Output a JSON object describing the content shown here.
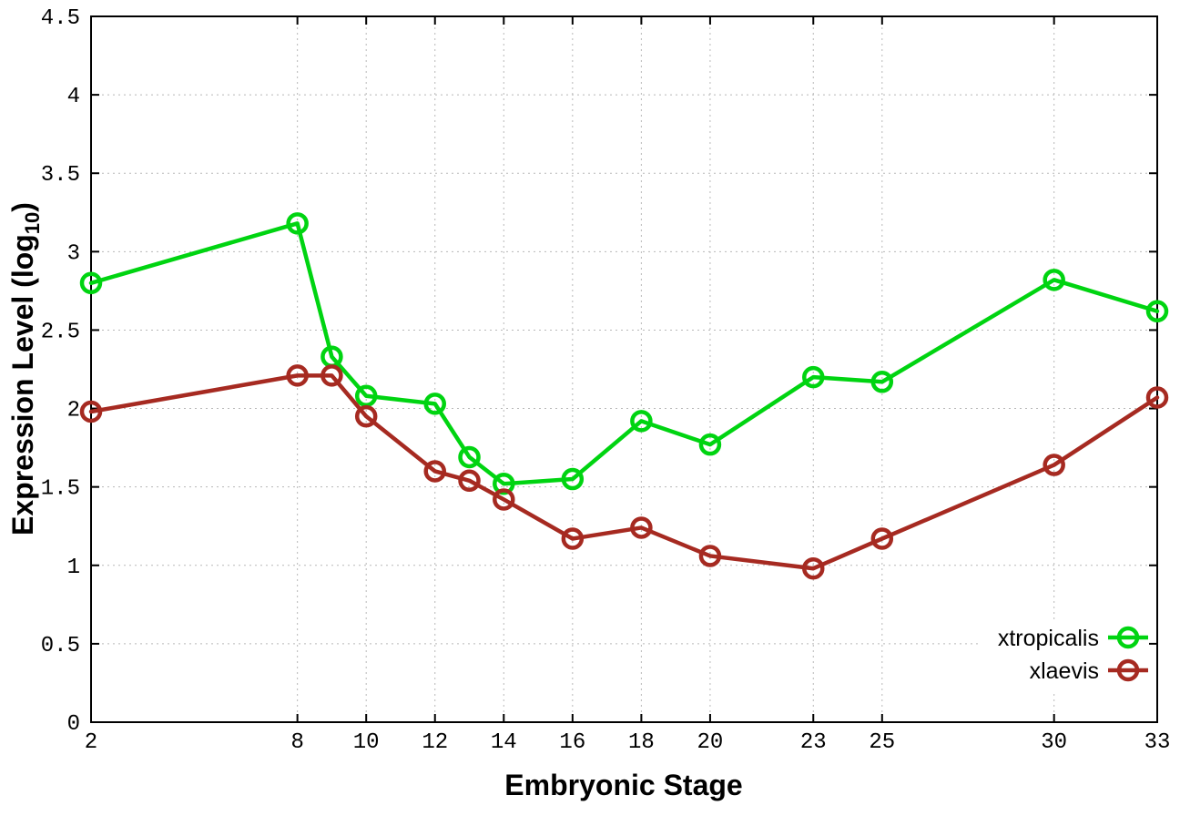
{
  "chart_data": {
    "type": "line",
    "title": "",
    "xlabel": "Embryonic Stage",
    "ylabel_main": "Expression Level (log",
    "ylabel_sub": "10",
    "ylabel_close": ")",
    "marker": "open-circle",
    "grid": true,
    "legend_position": "bottom-right-inside",
    "background": "#ffffff",
    "axis_color": "#000000",
    "grid_color": "#b8b8b8",
    "xlim": [
      2,
      33
    ],
    "ylim": [
      0,
      4.5
    ],
    "x": [
      2,
      8,
      9,
      10,
      12,
      13,
      14,
      16,
      18,
      20,
      23,
      25,
      30,
      33
    ],
    "series": [
      {
        "name": "xtropicalis",
        "color": "#00d411",
        "values": [
          2.8,
          3.18,
          2.33,
          2.08,
          2.03,
          1.69,
          1.52,
          1.55,
          1.92,
          1.77,
          2.2,
          2.17,
          2.82,
          2.62
        ]
      },
      {
        "name": "xlaevis",
        "color": "#a62a21",
        "values": [
          1.98,
          2.21,
          2.21,
          1.95,
          1.6,
          1.54,
          1.42,
          1.17,
          1.24,
          1.06,
          0.98,
          1.17,
          1.64,
          2.07
        ]
      }
    ],
    "xticks": {
      "values": [
        2,
        8,
        10,
        12,
        14,
        16,
        18,
        20,
        23,
        25,
        30,
        33
      ],
      "labels": [
        "2",
        "8",
        "10",
        "12",
        "14",
        "16",
        "18",
        "20",
        "23",
        "25",
        "30",
        "33"
      ]
    },
    "yticks": {
      "values": [
        0,
        0.5,
        1,
        1.5,
        2,
        2.5,
        3,
        3.5,
        4,
        4.5
      ],
      "labels": [
        "0",
        "0.5",
        "1",
        "1.5",
        "2",
        "2.5",
        "3",
        "3.5",
        "4",
        "4.5"
      ]
    }
  }
}
